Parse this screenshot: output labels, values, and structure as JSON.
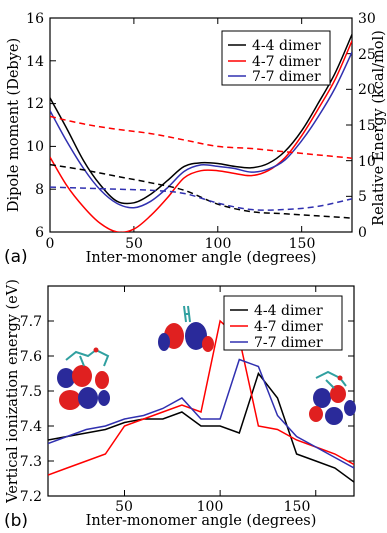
{
  "chart_data": [
    {
      "panel": "(a)",
      "type": "line",
      "xlabel": "Inter-monomer angle (degrees)",
      "ylabel": "Dipole moment (Debye)",
      "y2label": "Relative Energy (kcal/mol)",
      "xlim": [
        0,
        180
      ],
      "ylim": [
        6,
        16
      ],
      "y2lim": [
        0,
        30
      ],
      "xticks": [
        "0",
        "50",
        "100",
        "150"
      ],
      "yticks": [
        "6",
        "8",
        "10",
        "12",
        "14",
        "16"
      ],
      "y2ticks": [
        "0",
        "5",
        "10",
        "15",
        "20",
        "25",
        "30"
      ],
      "legend_position": "top-right",
      "series": [
        {
          "name": "4-4 dimer",
          "color": "#000000",
          "style": "solid",
          "axis": "right",
          "x": [
            0,
            10,
            20,
            30,
            40,
            50,
            60,
            70,
            80,
            90,
            100,
            110,
            120,
            130,
            140,
            150,
            160,
            170,
            180
          ],
          "values": [
            18.8,
            14.5,
            10.0,
            6.6,
            4.3,
            4.1,
            5.3,
            7.2,
            9.2,
            9.7,
            9.6,
            9.2,
            9.0,
            9.6,
            11.3,
            14.2,
            18.1,
            22.3,
            27.7
          ]
        },
        {
          "name": "4-7 dimer",
          "color": "#ff0000",
          "style": "solid",
          "axis": "right",
          "x": [
            0,
            10,
            20,
            30,
            40,
            50,
            60,
            70,
            80,
            90,
            100,
            110,
            120,
            130,
            140,
            150,
            160,
            170,
            180
          ],
          "values": [
            10.5,
            6.5,
            3.5,
            1.2,
            0.0,
            0.4,
            2.3,
            4.8,
            7.6,
            8.6,
            8.6,
            8.2,
            7.9,
            8.6,
            10.4,
            13.5,
            17.3,
            21.4,
            26.8
          ]
        },
        {
          "name": "7-7 dimer",
          "color": "#3030b0",
          "style": "solid",
          "axis": "right",
          "x": [
            0,
            10,
            20,
            30,
            40,
            50,
            60,
            70,
            80,
            90,
            100,
            110,
            120,
            130,
            140,
            150,
            160,
            170,
            180
          ],
          "values": [
            17.0,
            12.7,
            8.9,
            5.9,
            4.0,
            3.4,
            4.3,
            6.2,
            8.5,
            9.4,
            9.2,
            8.9,
            8.4,
            8.8,
            10.1,
            12.8,
            16.2,
            20.2,
            25.2
          ]
        },
        {
          "name": "",
          "color": "#000000",
          "style": "dashed",
          "axis": "left",
          "x": [
            0,
            20,
            40,
            60,
            80,
            100,
            120,
            140,
            160,
            180
          ],
          "values": [
            9.15,
            8.9,
            8.6,
            8.3,
            7.95,
            7.3,
            6.95,
            6.85,
            6.75,
            6.65
          ]
        },
        {
          "name": "",
          "color": "#ff0000",
          "style": "dashed",
          "axis": "left",
          "x": [
            0,
            20,
            40,
            60,
            80,
            100,
            120,
            140,
            160,
            180
          ],
          "values": [
            11.4,
            11.05,
            10.8,
            10.6,
            10.3,
            10.0,
            9.9,
            9.75,
            9.6,
            9.45
          ]
        },
        {
          "name": "",
          "color": "#3030b0",
          "style": "dashed",
          "axis": "left",
          "x": [
            0,
            20,
            40,
            60,
            80,
            100,
            120,
            140,
            160,
            180
          ],
          "values": [
            8.1,
            8.05,
            8.0,
            7.95,
            7.8,
            7.35,
            7.05,
            7.05,
            7.2,
            7.55
          ]
        }
      ]
    },
    {
      "panel": "(b)",
      "type": "line",
      "xlabel": "Inter-monomer angle (degrees)",
      "ylabel": "Vertical ionization energy (eV)",
      "xlim": [
        10,
        170
      ],
      "ylim": [
        7.2,
        7.8
      ],
      "xticks": [
        "50",
        "100",
        "150"
      ],
      "yticks": [
        "7.2",
        "7.3",
        "7.4",
        "7.5",
        "7.6",
        "7.7"
      ],
      "legend_position": "top-right",
      "series": [
        {
          "name": "4-4 dimer",
          "color": "#000000",
          "x": [
            10,
            20,
            30,
            40,
            50,
            60,
            70,
            80,
            90,
            100,
            110,
            120,
            130,
            140,
            150,
            160,
            170
          ],
          "values": [
            7.36,
            7.37,
            7.38,
            7.39,
            7.41,
            7.42,
            7.42,
            7.44,
            7.4,
            7.4,
            7.38,
            7.55,
            7.48,
            7.32,
            7.3,
            7.28,
            7.24
          ]
        },
        {
          "name": "4-7 dimer",
          "color": "#ff0000",
          "x": [
            10,
            20,
            30,
            40,
            50,
            60,
            70,
            80,
            90,
            100,
            110,
            120,
            130,
            140,
            150,
            160,
            170
          ],
          "values": [
            7.26,
            7.28,
            7.3,
            7.32,
            7.4,
            7.42,
            7.44,
            7.46,
            7.44,
            7.7,
            7.65,
            7.4,
            7.39,
            7.36,
            7.34,
            7.32,
            7.29
          ]
        },
        {
          "name": "7-7 dimer",
          "color": "#3030b0",
          "x": [
            10,
            20,
            30,
            40,
            50,
            60,
            70,
            80,
            90,
            100,
            110,
            120,
            130,
            140,
            150,
            160,
            170
          ],
          "values": [
            7.35,
            7.37,
            7.39,
            7.4,
            7.42,
            7.43,
            7.45,
            7.48,
            7.42,
            7.42,
            7.59,
            7.57,
            7.43,
            7.37,
            7.34,
            7.31,
            7.28
          ]
        }
      ]
    }
  ]
}
